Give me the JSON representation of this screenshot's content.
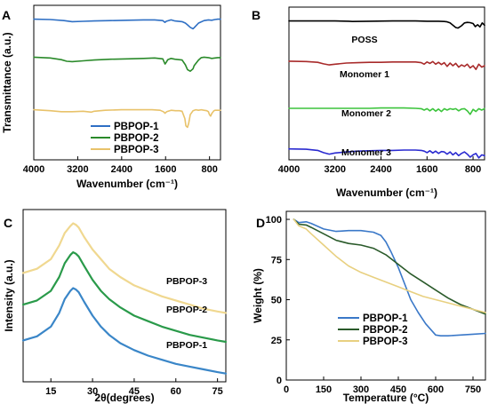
{
  "chart_data": [
    {
      "panel": "A",
      "type": "line",
      "xlabel": "Wavenumber (cm⁻¹)",
      "ylabel": "Transmittance (a.u.)",
      "xlim": [
        4000,
        600
      ],
      "x_reversed": true,
      "x_ticks": [
        4000,
        3200,
        2400,
        1600,
        800
      ],
      "y_ticks": [],
      "legend_position": "bottom-center",
      "series": [
        {
          "name": "PBPOP-1",
          "color": "#2e6fc4",
          "x": [
            4000,
            3700,
            3450,
            3300,
            3100,
            2900,
            2600,
            2300,
            2000,
            1800,
            1650,
            1610,
            1590,
            1500,
            1430,
            1300,
            1240,
            1200,
            1150,
            1100,
            1080,
            1000,
            900,
            820,
            760,
            700,
            650,
            600
          ],
          "y": [
            96,
            95,
            92,
            89,
            90,
            91,
            92,
            93,
            94,
            94,
            92,
            87,
            90,
            94,
            91,
            89,
            85,
            80,
            73,
            69,
            72,
            85,
            92,
            94,
            93,
            95,
            96,
            96
          ]
        },
        {
          "name": "PBPOP-2",
          "color": "#2a8a2a",
          "x": [
            4000,
            3700,
            3500,
            3400,
            3300,
            3100,
            2900,
            2600,
            2300,
            2000,
            1800,
            1650,
            1610,
            1590,
            1560,
            1500,
            1430,
            1300,
            1240,
            1200,
            1150,
            1100,
            1080,
            1000,
            950,
            900,
            820,
            760,
            700,
            650,
            600
          ],
          "y": [
            79,
            77,
            73,
            69,
            68,
            70,
            72,
            74,
            75,
            76,
            77,
            75,
            62,
            66,
            73,
            76,
            74,
            72,
            60,
            48,
            44,
            50,
            58,
            72,
            78,
            79,
            78,
            76,
            77,
            78,
            78
          ]
        },
        {
          "name": "PBPOP-3",
          "color": "#e8c26a",
          "x": [
            4000,
            3700,
            3500,
            3300,
            3100,
            2950,
            2900,
            2700,
            2400,
            2100,
            1850,
            1700,
            1640,
            1610,
            1580,
            1500,
            1420,
            1350,
            1300,
            1250,
            1230,
            1200,
            1180,
            1150,
            1100,
            1050,
            1000,
            950,
            900,
            850,
            820,
            800,
            780,
            760,
            720,
            700,
            650,
            600
          ],
          "y": [
            48,
            46,
            44,
            44,
            45,
            43,
            45,
            47,
            48,
            48,
            48,
            47,
            44,
            41,
            44,
            47,
            46,
            46,
            45,
            30,
            15,
            12,
            20,
            38,
            46,
            48,
            47,
            48,
            47,
            46,
            44,
            38,
            35,
            40,
            46,
            47,
            47,
            47
          ]
        }
      ]
    },
    {
      "panel": "B",
      "type": "line",
      "xlabel": "Wavenumber (cm⁻¹)",
      "ylabel": "",
      "xlim": [
        4000,
        600
      ],
      "x_reversed": true,
      "x_ticks": [
        4000,
        3200,
        2400,
        1600,
        800
      ],
      "y_ticks": [],
      "series": [
        {
          "name": "POSS",
          "color": "#000000",
          "x": [
            4000,
            3600,
            3200,
            2960,
            2900,
            2600,
            2200,
            1800,
            1600,
            1400,
            1300,
            1250,
            1200,
            1150,
            1100,
            1060,
            1000,
            950,
            900,
            850,
            800,
            760,
            720,
            680,
            640,
            600
          ],
          "y": [
            95,
            95,
            95,
            94,
            93,
            94,
            95,
            95,
            94,
            94,
            93,
            92,
            88,
            80,
            72,
            70,
            78,
            88,
            90,
            89,
            86,
            75,
            82,
            74,
            88,
            80
          ]
        },
        {
          "name": "Monomer 1",
          "color": "#a82a2a",
          "x": [
            4000,
            3700,
            3500,
            3400,
            3300,
            3200,
            3000,
            2800,
            2600,
            2400,
            2200,
            2000,
            1800,
            1700,
            1650,
            1600,
            1550,
            1500,
            1450,
            1400,
            1350,
            1300,
            1250,
            1200,
            1150,
            1100,
            1050,
            1000,
            950,
            900,
            850,
            800,
            750,
            700,
            650,
            600
          ],
          "y": [
            74,
            73,
            71,
            67,
            64,
            66,
            69,
            70,
            71,
            71,
            72,
            72,
            72,
            70,
            66,
            72,
            68,
            73,
            66,
            71,
            65,
            70,
            60,
            69,
            62,
            68,
            58,
            64,
            60,
            66,
            56,
            62,
            52,
            66,
            58,
            62
          ]
        },
        {
          "name": "Monomer 2",
          "color": "#3cc43c",
          "x": [
            4000,
            3600,
            3200,
            3000,
            2800,
            2600,
            2400,
            2200,
            2000,
            1800,
            1700,
            1650,
            1600,
            1550,
            1500,
            1450,
            1400,
            1350,
            1300,
            1250,
            1200,
            1150,
            1100,
            1050,
            1000,
            950,
            900,
            850,
            800,
            750,
            700,
            650,
            600
          ],
          "y": [
            45,
            45,
            45,
            45,
            45,
            45,
            46,
            46,
            46,
            45,
            44,
            40,
            44,
            38,
            44,
            37,
            43,
            36,
            44,
            40,
            44,
            42,
            44,
            38,
            43,
            44,
            38,
            28,
            42,
            36,
            44,
            40,
            44
          ]
        },
        {
          "name": "Monomer 3",
          "color": "#2a2ad0",
          "x": [
            4000,
            3700,
            3500,
            3400,
            3300,
            3200,
            3000,
            2800,
            2600,
            2400,
            2200,
            2000,
            1800,
            1700,
            1650,
            1600,
            1550,
            1500,
            1450,
            1400,
            1350,
            1300,
            1250,
            1200,
            1150,
            1100,
            1050,
            1000,
            950,
            900,
            850,
            800,
            750,
            700,
            650,
            600
          ],
          "y": [
            34,
            33,
            30,
            24,
            20,
            23,
            26,
            28,
            29,
            30,
            30,
            31,
            31,
            30,
            28,
            24,
            29,
            23,
            28,
            22,
            27,
            26,
            20,
            26,
            18,
            24,
            16,
            22,
            26,
            20,
            12,
            18,
            22,
            10,
            18,
            16
          ]
        }
      ]
    },
    {
      "panel": "C",
      "type": "line",
      "xlabel": "2θ(degrees)",
      "ylabel": "Intensity (a.u.)",
      "xlim": [
        5,
        78
      ],
      "x_ticks": [
        15,
        30,
        45,
        60,
        75
      ],
      "y_ticks": [],
      "series": [
        {
          "name": "PBPOP-1",
          "color": "#3a86c8",
          "x": [
            5,
            10,
            15,
            18,
            20,
            22,
            23,
            24,
            25,
            27,
            30,
            33,
            36,
            40,
            45,
            50,
            55,
            60,
            65,
            70,
            75,
            78
          ],
          "y": [
            30,
            33,
            40,
            50,
            60,
            66,
            68,
            67,
            65,
            58,
            48,
            40,
            34,
            28,
            23,
            19,
            16,
            13,
            11,
            9,
            7,
            6
          ]
        },
        {
          "name": "PBPOP-2",
          "color": "#2a9a4a",
          "x": [
            5,
            10,
            15,
            18,
            20,
            22,
            23,
            24,
            25,
            27,
            30,
            33,
            36,
            40,
            45,
            50,
            55,
            60,
            65,
            70,
            75,
            78
          ],
          "y": [
            56,
            59,
            66,
            76,
            86,
            92,
            94,
            93,
            91,
            84,
            74,
            66,
            60,
            54,
            48,
            44,
            40,
            37,
            34,
            32,
            30,
            29
          ]
        },
        {
          "name": "PBPOP-3",
          "color": "#f0d890",
          "x": [
            5,
            10,
            15,
            18,
            20,
            22,
            23,
            24,
            25,
            27,
            30,
            33,
            36,
            40,
            45,
            50,
            55,
            60,
            65,
            70,
            75,
            78
          ],
          "y": [
            79,
            82,
            89,
            99,
            108,
            113,
            115,
            114,
            112,
            105,
            96,
            89,
            82,
            76,
            70,
            66,
            62,
            59,
            56,
            53,
            51,
            50
          ]
        }
      ],
      "annotations": [
        "PBPOP-3",
        "PBPOP-2",
        "PBPOP-1"
      ]
    },
    {
      "panel": "D",
      "type": "line",
      "xlabel": "Temperature (°C)",
      "ylabel": "Weight (%)",
      "xlim": [
        0,
        800
      ],
      "ylim": [
        0,
        100
      ],
      "x_ticks": [
        0,
        150,
        300,
        450,
        600,
        750
      ],
      "y_ticks": [
        0,
        25,
        50,
        75,
        100
      ],
      "legend_position": "bottom-left",
      "series": [
        {
          "name": "PBPOP-1",
          "color": "#3a78c8",
          "x": [
            30,
            50,
            80,
            100,
            150,
            200,
            250,
            300,
            350,
            380,
            400,
            420,
            450,
            480,
            500,
            530,
            560,
            600,
            620,
            650,
            700,
            750,
            800
          ],
          "y": [
            100,
            98,
            98.5,
            97.5,
            94,
            92.5,
            93,
            93,
            92,
            90,
            86,
            80,
            70,
            58,
            50,
            42,
            35,
            28,
            27.5,
            27.5,
            28,
            28.5,
            29
          ]
        },
        {
          "name": "PBPOP-2",
          "color": "#2a5a2a",
          "x": [
            30,
            50,
            80,
            100,
            150,
            200,
            250,
            300,
            350,
            400,
            450,
            500,
            550,
            600,
            650,
            700,
            750,
            800
          ],
          "y": [
            100,
            97,
            96.5,
            95,
            91,
            87,
            85,
            84,
            82,
            78,
            72,
            66,
            61,
            56,
            51,
            47,
            44,
            41
          ]
        },
        {
          "name": "PBPOP-3",
          "color": "#e8d080",
          "x": [
            30,
            50,
            80,
            100,
            150,
            200,
            250,
            300,
            350,
            400,
            450,
            500,
            550,
            600,
            650,
            700,
            750,
            800
          ],
          "y": [
            100,
            96,
            94,
            91,
            84,
            77,
            71,
            67,
            64,
            61,
            58,
            55,
            52,
            50,
            48,
            46,
            44,
            42
          ]
        }
      ]
    }
  ]
}
